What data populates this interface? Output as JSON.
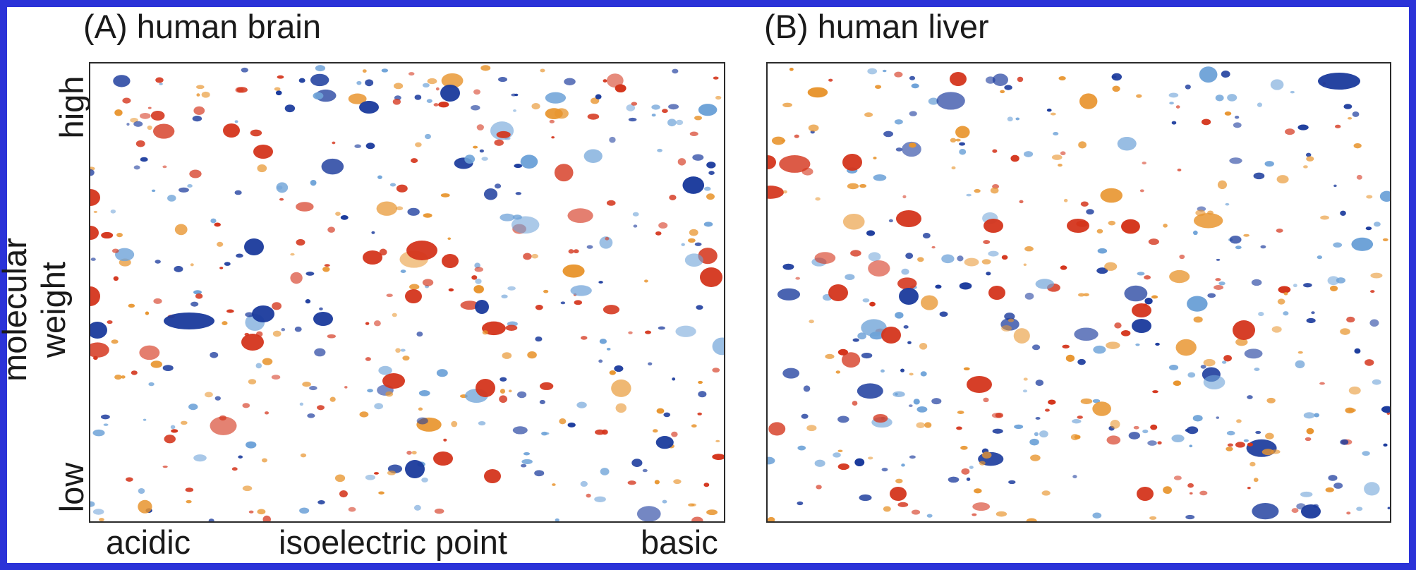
{
  "panels": {
    "a": {
      "title": "(A) human brain"
    },
    "b": {
      "title": "(B) human liver"
    }
  },
  "y_axis": {
    "high": "high",
    "low": "low",
    "label": "molecular weight"
  },
  "x_axis": {
    "acidic": "acidic",
    "label": "isoelectric point",
    "basic": "basic"
  },
  "colors": {
    "background": "#2b33d8",
    "red_spot": "#d4351c",
    "blue_spot": "#1a3a9c",
    "light_blue_spot": "#6fa3d8",
    "orange_spot": "#e8952f"
  }
}
